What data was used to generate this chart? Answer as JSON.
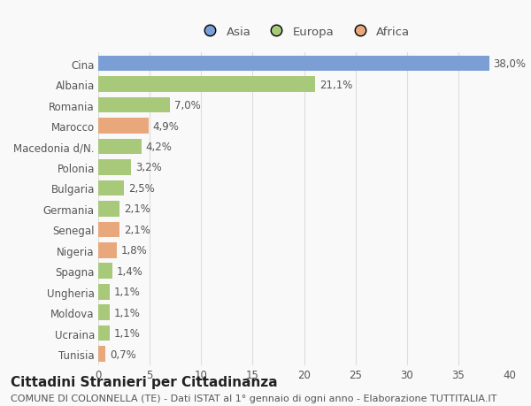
{
  "categories": [
    "Tunisia",
    "Ucraina",
    "Moldova",
    "Ungheria",
    "Spagna",
    "Nigeria",
    "Senegal",
    "Germania",
    "Bulgaria",
    "Polonia",
    "Macedonia d/N.",
    "Marocco",
    "Romania",
    "Albania",
    "Cina"
  ],
  "values": [
    0.7,
    1.1,
    1.1,
    1.1,
    1.4,
    1.8,
    2.1,
    2.1,
    2.5,
    3.2,
    4.2,
    4.9,
    7.0,
    21.1,
    38.0
  ],
  "labels": [
    "0,7%",
    "1,1%",
    "1,1%",
    "1,1%",
    "1,4%",
    "1,8%",
    "2,1%",
    "2,1%",
    "2,5%",
    "3,2%",
    "4,2%",
    "4,9%",
    "7,0%",
    "21,1%",
    "38,0%"
  ],
  "colors": [
    "#e8a87c",
    "#a8c87a",
    "#a8c87a",
    "#a8c87a",
    "#a8c87a",
    "#e8a87c",
    "#e8a87c",
    "#a8c87a",
    "#a8c87a",
    "#a8c87a",
    "#a8c87a",
    "#e8a87c",
    "#a8c87a",
    "#a8c87a",
    "#7b9fd4"
  ],
  "legend_labels": [
    "Asia",
    "Europa",
    "Africa"
  ],
  "legend_colors": [
    "#7b9fd4",
    "#a8c87a",
    "#e8a87c"
  ],
  "title": "Cittadini Stranieri per Cittadinanza",
  "subtitle": "COMUNE DI COLONNELLA (TE) - Dati ISTAT al 1° gennaio di ogni anno - Elaborazione TUTTITALIA.IT",
  "xlim": [
    0,
    40
  ],
  "xticks": [
    0,
    5,
    10,
    15,
    20,
    25,
    30,
    35,
    40
  ],
  "bg_color": "#f9f9f9",
  "grid_color": "#dddddd",
  "text_color": "#555555",
  "label_fontsize": 8.5,
  "tick_fontsize": 8.5,
  "title_fontsize": 11,
  "subtitle_fontsize": 8
}
